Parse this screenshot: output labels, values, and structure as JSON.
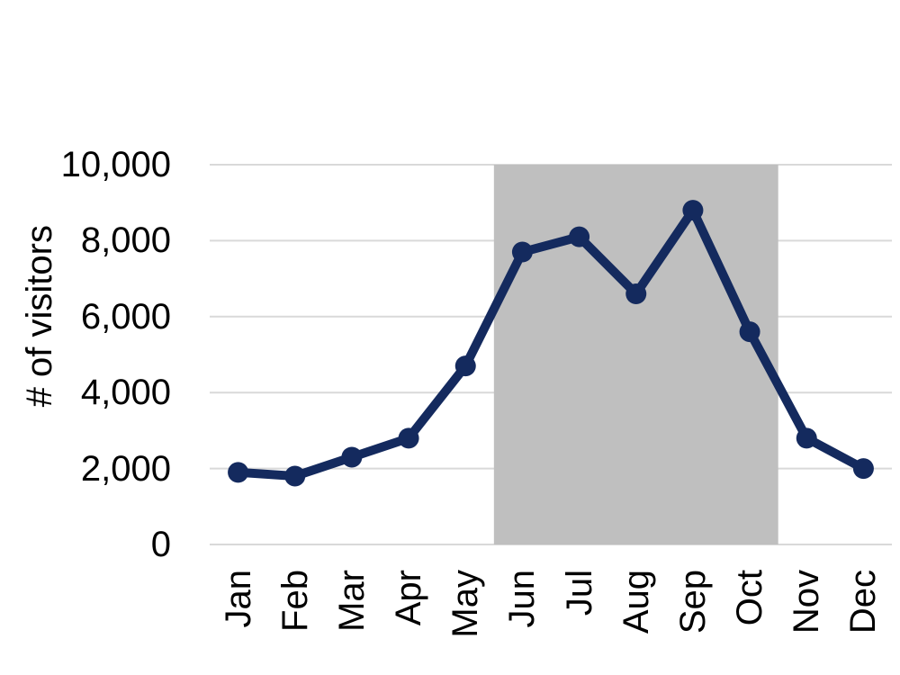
{
  "chart_data": {
    "type": "line",
    "title": "",
    "categories": [
      "Jan",
      "Feb",
      "Mar",
      "Apr",
      "May",
      "Jun",
      "Jul",
      "Aug",
      "Sep",
      "Oct",
      "Nov",
      "Dec"
    ],
    "series": [
      {
        "name": "# of visitors",
        "values": [
          1900,
          1800,
          2300,
          2800,
          4700,
          7700,
          8100,
          6600,
          8800,
          5600,
          2800,
          2000
        ]
      }
    ],
    "xlabel": "",
    "ylabel": "# of visitors",
    "ylim": [
      0,
      10000
    ],
    "ytick_interval": 2000,
    "ytick_labels": [
      "0",
      "2,000",
      "4,000",
      "6,000",
      "8,000",
      "10,000"
    ],
    "grid": "horizontal",
    "legend": "none",
    "highlight_band": {
      "from_month": "Jun",
      "to_month": "Oct",
      "color": "#bfbfbf"
    },
    "colors": {
      "line": "#142a5e",
      "marker": "#142a5e",
      "gridline": "#d9d9d9",
      "text": "#000000",
      "background": "#ffffff"
    }
  }
}
